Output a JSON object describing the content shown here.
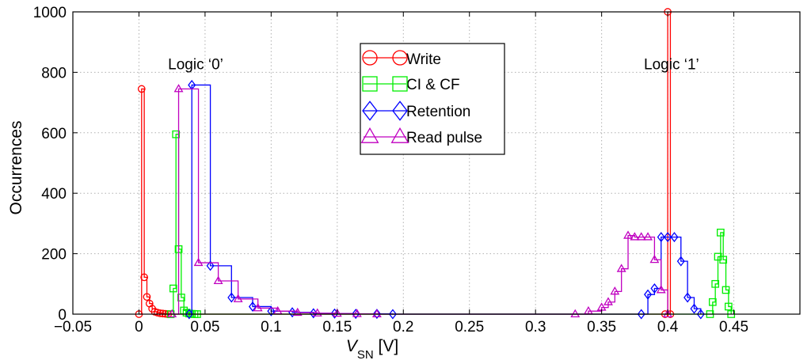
{
  "chart_data": {
    "type": "line",
    "title": "",
    "xlabel": "V_SN [V]",
    "xlabel_main": "V",
    "xlabel_sub": "SN",
    "xlabel_unit": " [V]",
    "ylabel": "Occurrences",
    "xlim": [
      -0.05,
      0.5
    ],
    "ylim": [
      0,
      1000
    ],
    "grid": true,
    "legend_position": "top-center",
    "x_ticks": [
      -0.05,
      0,
      0.05,
      0.1,
      0.15,
      0.2,
      0.25,
      0.3,
      0.35,
      0.4,
      0.45
    ],
    "x_tick_labels": [
      "−0.05",
      "0",
      "0.05",
      "0.1",
      "0.15",
      "0.2",
      "0.25",
      "0.3",
      "0.35",
      "0.4",
      "0.45"
    ],
    "y_ticks": [
      0,
      200,
      400,
      600,
      800,
      1000
    ],
    "y_tick_labels": [
      "0",
      "200",
      "400",
      "600",
      "800",
      "1000"
    ],
    "annotations": [
      {
        "text": "Logic ‘0’",
        "x": 0.022,
        "y": 810
      },
      {
        "text": "Logic ‘1’",
        "x": 0.382,
        "y": 810
      }
    ],
    "series": [
      {
        "name": "Write",
        "color": "#ff0000",
        "marker": "circle",
        "x": [
          0.0,
          0.002,
          0.004,
          0.006,
          0.008,
          0.01,
          0.012,
          0.014,
          0.016,
          0.018,
          0.02,
          0.022,
          0.398,
          0.4,
          0.402
        ],
        "y": [
          0,
          745,
          122,
          57,
          35,
          18,
          8,
          5,
          3,
          2,
          1,
          0,
          0,
          1000,
          0
        ]
      },
      {
        "name": "CI & CF",
        "color": "#00ee00",
        "marker": "square",
        "x": [
          0.024,
          0.026,
          0.028,
          0.03,
          0.032,
          0.034,
          0.036,
          0.038,
          0.04,
          0.042,
          0.044,
          0.432,
          0.434,
          0.436,
          0.438,
          0.44,
          0.442,
          0.444,
          0.446,
          0.448
        ],
        "y": [
          0,
          85,
          595,
          215,
          55,
          12,
          5,
          2,
          1,
          0,
          0,
          0,
          40,
          100,
          190,
          270,
          180,
          80,
          25,
          0
        ]
      },
      {
        "name": "Retention",
        "color": "#0000ff",
        "marker": "diamond",
        "x": [
          0.038,
          0.04,
          0.054,
          0.07,
          0.086,
          0.1,
          0.116,
          0.132,
          0.148,
          0.164,
          0.18,
          0.192,
          0.38,
          0.385,
          0.39,
          0.395,
          0.4,
          0.405,
          0.41,
          0.415,
          0.42,
          0.425
        ],
        "y": [
          0,
          758,
          160,
          55,
          25,
          10,
          6,
          3,
          2,
          1,
          1,
          0,
          0,
          65,
          85,
          255,
          255,
          255,
          175,
          55,
          18,
          0
        ]
      },
      {
        "name": "Read pulse",
        "color": "#c000c0",
        "marker": "triangle",
        "x": [
          0.025,
          0.03,
          0.045,
          0.06,
          0.075,
          0.09,
          0.105,
          0.12,
          0.135,
          0.15,
          0.165,
          0.18,
          0.33,
          0.34,
          0.35,
          0.355,
          0.36,
          0.365,
          0.37,
          0.375,
          0.38,
          0.385,
          0.39,
          0.395,
          0.4
        ],
        "y": [
          0,
          745,
          170,
          110,
          50,
          20,
          10,
          5,
          3,
          2,
          1,
          0,
          0,
          10,
          22,
          40,
          75,
          150,
          260,
          255,
          255,
          255,
          180,
          80,
          0
        ]
      }
    ]
  }
}
